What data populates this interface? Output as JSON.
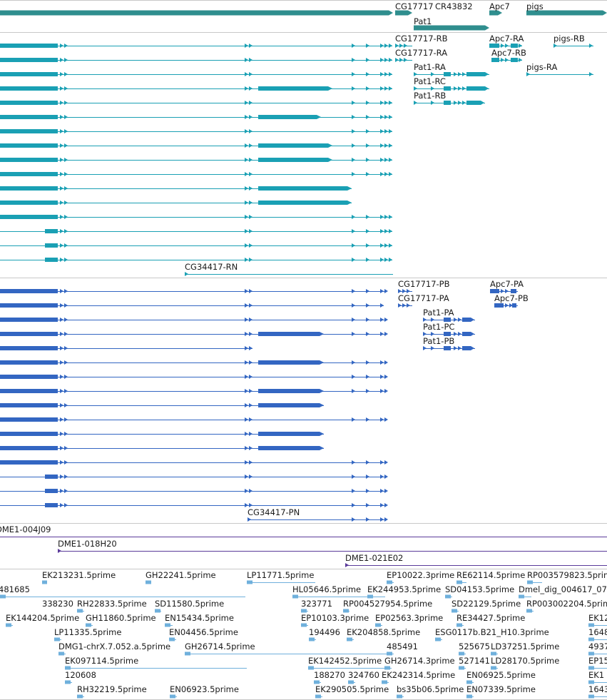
{
  "app": "Genome browser track view",
  "colors": {
    "background": "#ffffff",
    "divider": "#c8c8c8",
    "gene_track": "#2f8e8e",
    "transcript_track": "#1aa0b4",
    "cds_track": "#3366c2",
    "clone_track": "#5a3a9a",
    "est_track": "#6fb0dc",
    "label": "#1a1a1a"
  },
  "tracks": {
    "genes": {
      "labels": [
        "CG17717",
        "CR43832",
        "Apc7",
        "pigs",
        "Pat1"
      ]
    },
    "transcripts": {
      "labels": [
        "CG17717-RB",
        "Apc7-RA",
        "pigs-RB",
        "CG17717-RA",
        "Apc7-RB",
        "Pat1-RA",
        "pigs-RA",
        "Pat1-RC",
        "Pat1-RB",
        "CG34417-RN"
      ]
    },
    "proteins": {
      "labels": [
        "CG17717-PB",
        "Apc7-PA",
        "CG17717-PA",
        "Apc7-PB",
        "Pat1-PA",
        "Pat1-PC",
        "Pat1-PB",
        "CG34417-PN"
      ]
    },
    "clones": {
      "labels": [
        "DME1-004J09",
        "DME1-018H20",
        "DME1-021E02"
      ]
    },
    "ests": {
      "labels": [
        "EK213231.5prime",
        "GH22241.5prime",
        "LP11771.5prime",
        "EP10022.3prime",
        "RE62114.5prime",
        "RP003579823.5prime",
        "481685",
        "HL05646.5prime",
        "EK244953.5prime",
        "SD04153.5prime",
        "Dmel_dig_004617_07",
        "338230",
        "RH22833.5prime",
        "SD11580.5prime",
        "323771",
        "RP004527954.5prime",
        "SD22129.5prime",
        "RP003002204.5prime",
        "EK144204.5prime",
        "GH11860.5prime",
        "EN15434.5prime",
        "EP10103.3prime",
        "EP02563.3prime",
        "RE34427.5prime",
        "EK12",
        "LP11335.5prime",
        "EN04456.5prime",
        "194496",
        "EK204858.5prime",
        "ESG0117b.B21_H10.3prime",
        "1648",
        "DMG1-chrX.7.052.a.5prime",
        "GH26714.5prime",
        "485491",
        "525675",
        "LD37251.5prime",
        "4937",
        "EK097114.5prime",
        "EK142452.5prime",
        "GH26714.3prime",
        "527141",
        "LD28170.5prime",
        "EP15",
        "120608",
        "188270",
        "324760",
        "EK242314.5prime",
        "EN06925.5prime",
        "EK1",
        "RH32219.5prime",
        "EN06923.5prime",
        "EK290505.5prime",
        "bs35b06.5prime",
        "EN07339.5prime",
        "1643"
      ]
    }
  }
}
